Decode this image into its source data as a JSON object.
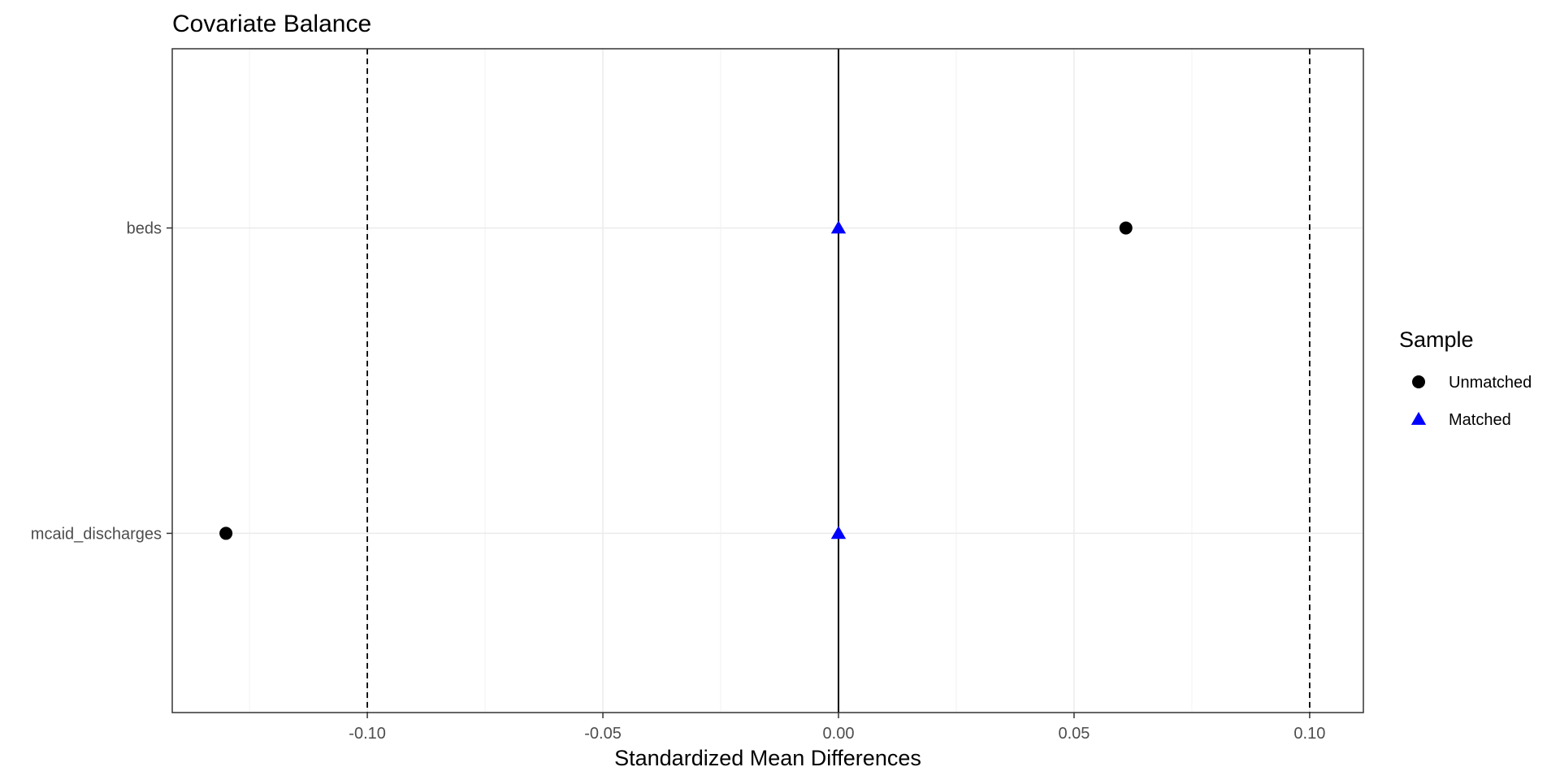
{
  "chart_data": {
    "type": "scatter",
    "title": "Covariate Balance",
    "xlabel": "Standardized Mean Differences",
    "ylabel": "",
    "xlim": [
      -0.1414,
      0.1114
    ],
    "x_ticks": [
      -0.1,
      -0.05,
      0.0,
      0.05,
      0.1
    ],
    "x_tick_labels": [
      "-0.10",
      "-0.05",
      "0.00",
      "0.05",
      "0.10"
    ],
    "categories": [
      "beds",
      "mcaid_discharges"
    ],
    "threshold_lines": [
      -0.1,
      0.1
    ],
    "zero_line": 0.0,
    "grid": true,
    "legend": {
      "title": "Sample",
      "position": "right"
    },
    "series": [
      {
        "name": "Unmatched",
        "marker": "circle",
        "color": "#000000",
        "values": [
          0.061,
          -0.13
        ]
      },
      {
        "name": "Matched",
        "marker": "triangle",
        "color": "#0000ff",
        "values": [
          0.0,
          0.0
        ]
      }
    ]
  }
}
